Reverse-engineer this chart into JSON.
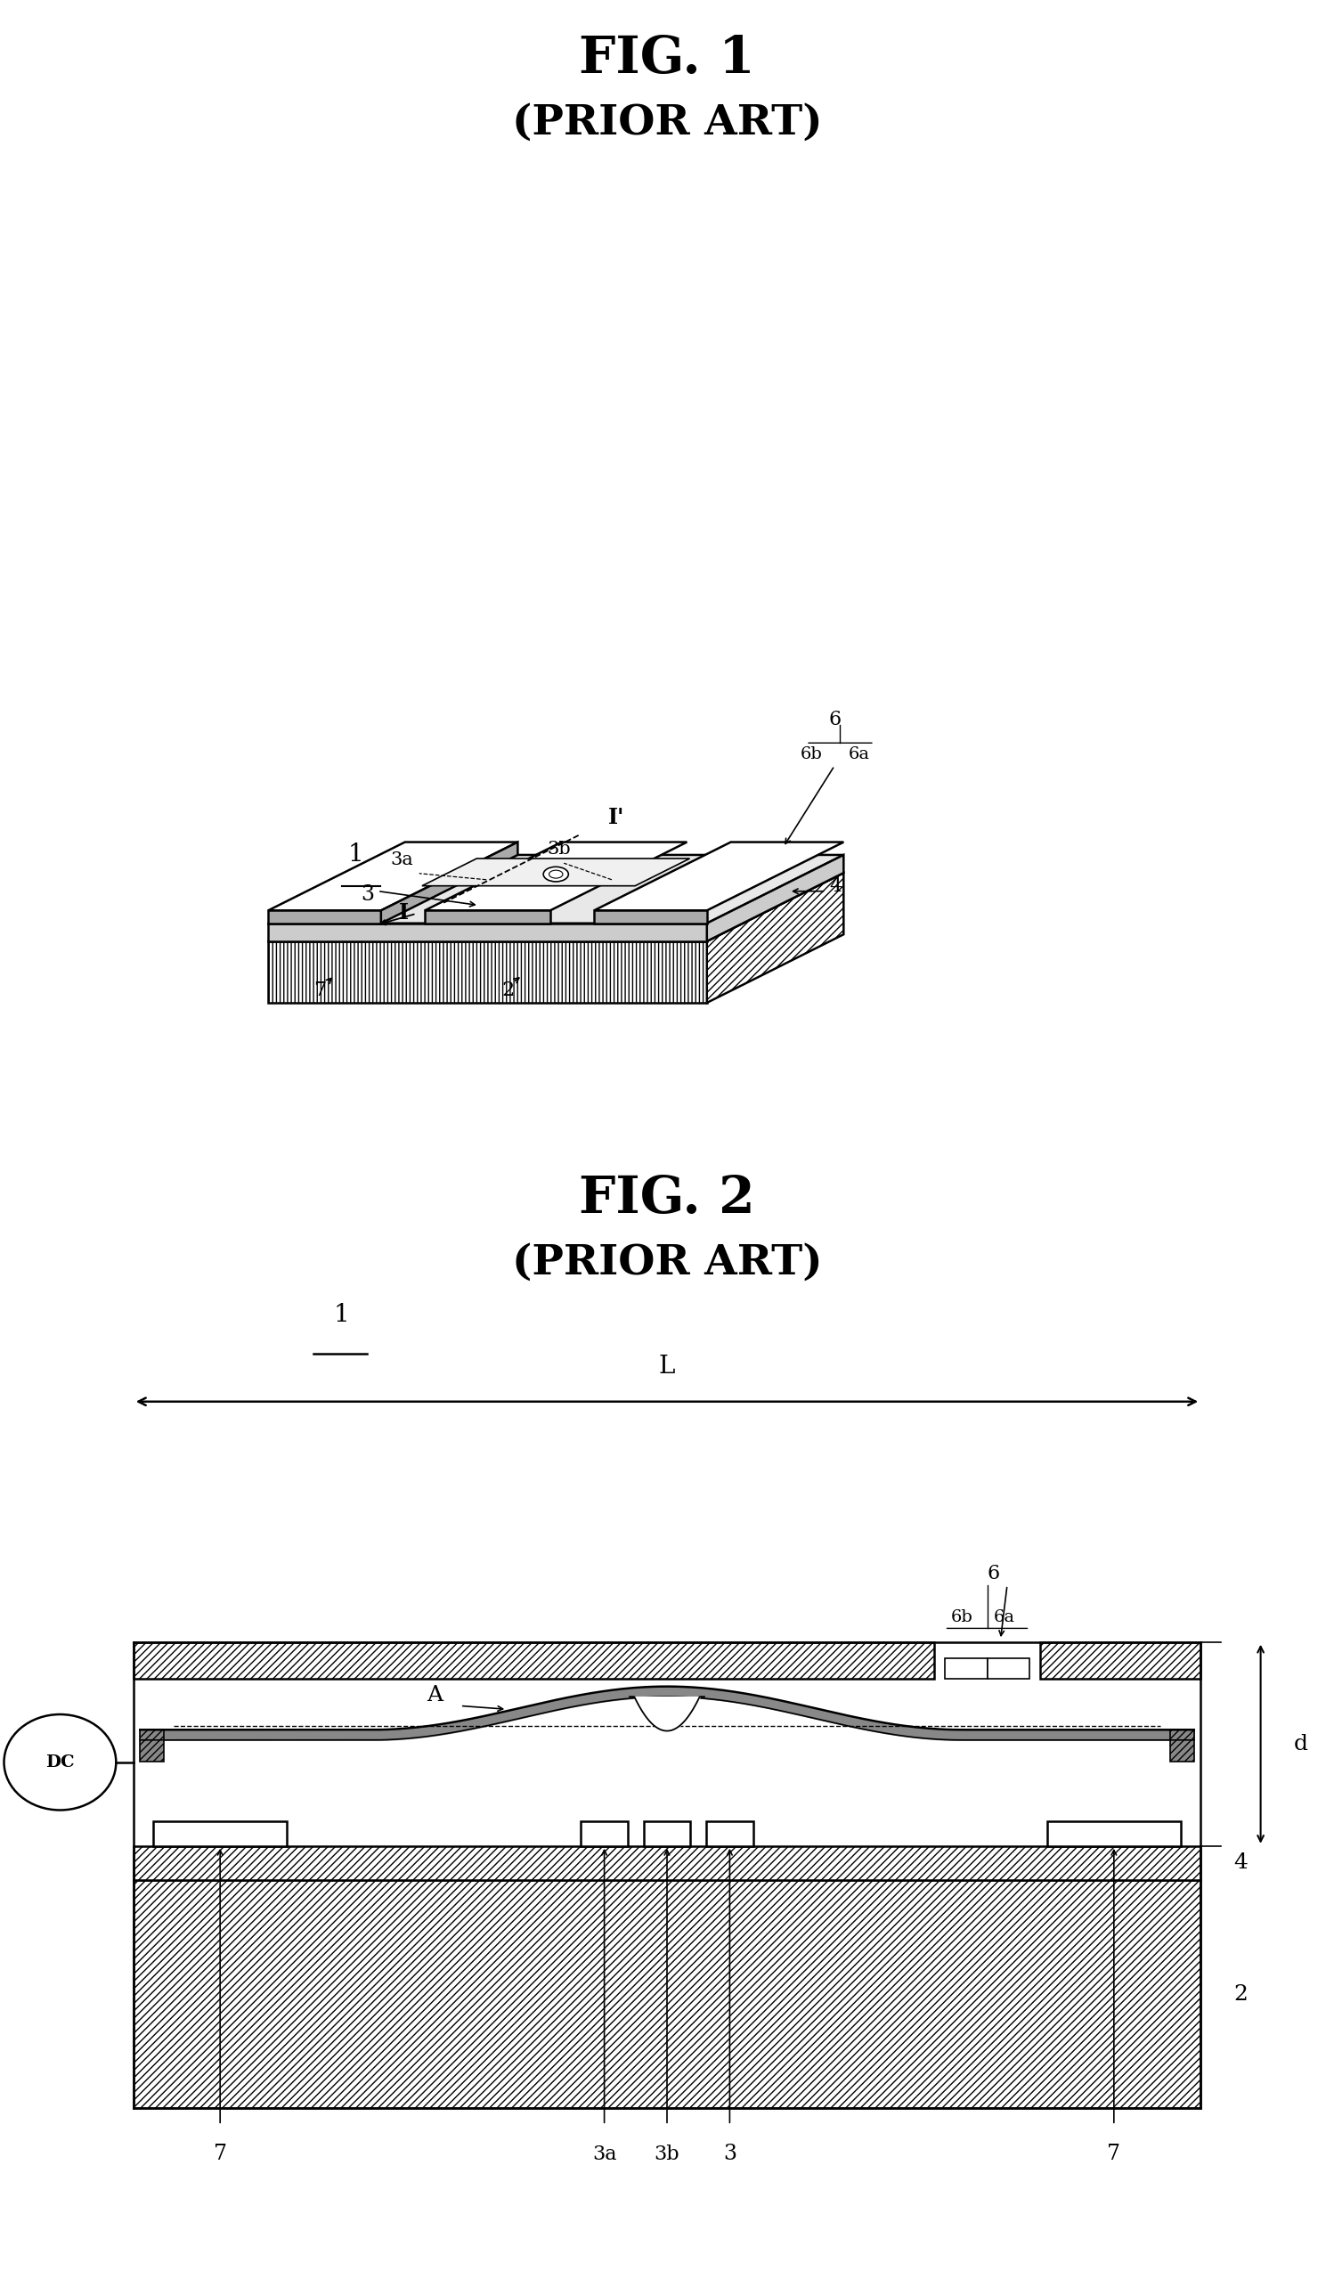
{
  "fig1_title": "FIG. 1",
  "fig1_subtitle": "(PRIOR ART)",
  "fig2_title": "FIG. 2",
  "fig2_subtitle": "(PRIOR ART)",
  "bg_color": "#ffffff"
}
